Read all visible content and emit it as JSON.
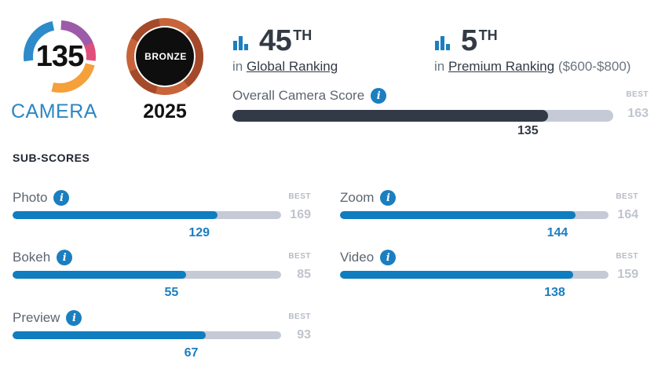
{
  "camera": {
    "score": "135",
    "label": "CAMERA"
  },
  "award": {
    "badge": "BRONZE",
    "year": "2025"
  },
  "global_ranking": {
    "number": "45",
    "suffix": "TH",
    "prefix": "in",
    "link": "Global Ranking"
  },
  "premium_ranking": {
    "number": "5",
    "suffix": "TH",
    "prefix": "in",
    "link": "Premium Ranking",
    "range": "($600-$800)"
  },
  "overall": {
    "label": "Overall Camera Score",
    "best_label": "BEST",
    "best": 163,
    "score": 135
  },
  "subscores_title": "SUB-SCORES",
  "subscores": [
    {
      "label": "Photo",
      "score": 129,
      "best": 169,
      "best_label": "BEST"
    },
    {
      "label": "Zoom",
      "score": 144,
      "best": 164,
      "best_label": "BEST"
    },
    {
      "label": "Bokeh",
      "score": 55,
      "best": 85,
      "best_label": "BEST"
    },
    {
      "label": "Video",
      "score": 138,
      "best": 159,
      "best_label": "BEST"
    },
    {
      "label": "Preview",
      "score": 67,
      "best": 93,
      "best_label": "BEST"
    }
  ],
  "colors": {
    "accent_blue": "#0f7dbf",
    "bar_dark": "#333a47",
    "track": "#c5cad6",
    "camera_blue": "#2c86c4"
  },
  "icons": {
    "ranking": "bar-chart-icon",
    "info": "info-icon"
  }
}
